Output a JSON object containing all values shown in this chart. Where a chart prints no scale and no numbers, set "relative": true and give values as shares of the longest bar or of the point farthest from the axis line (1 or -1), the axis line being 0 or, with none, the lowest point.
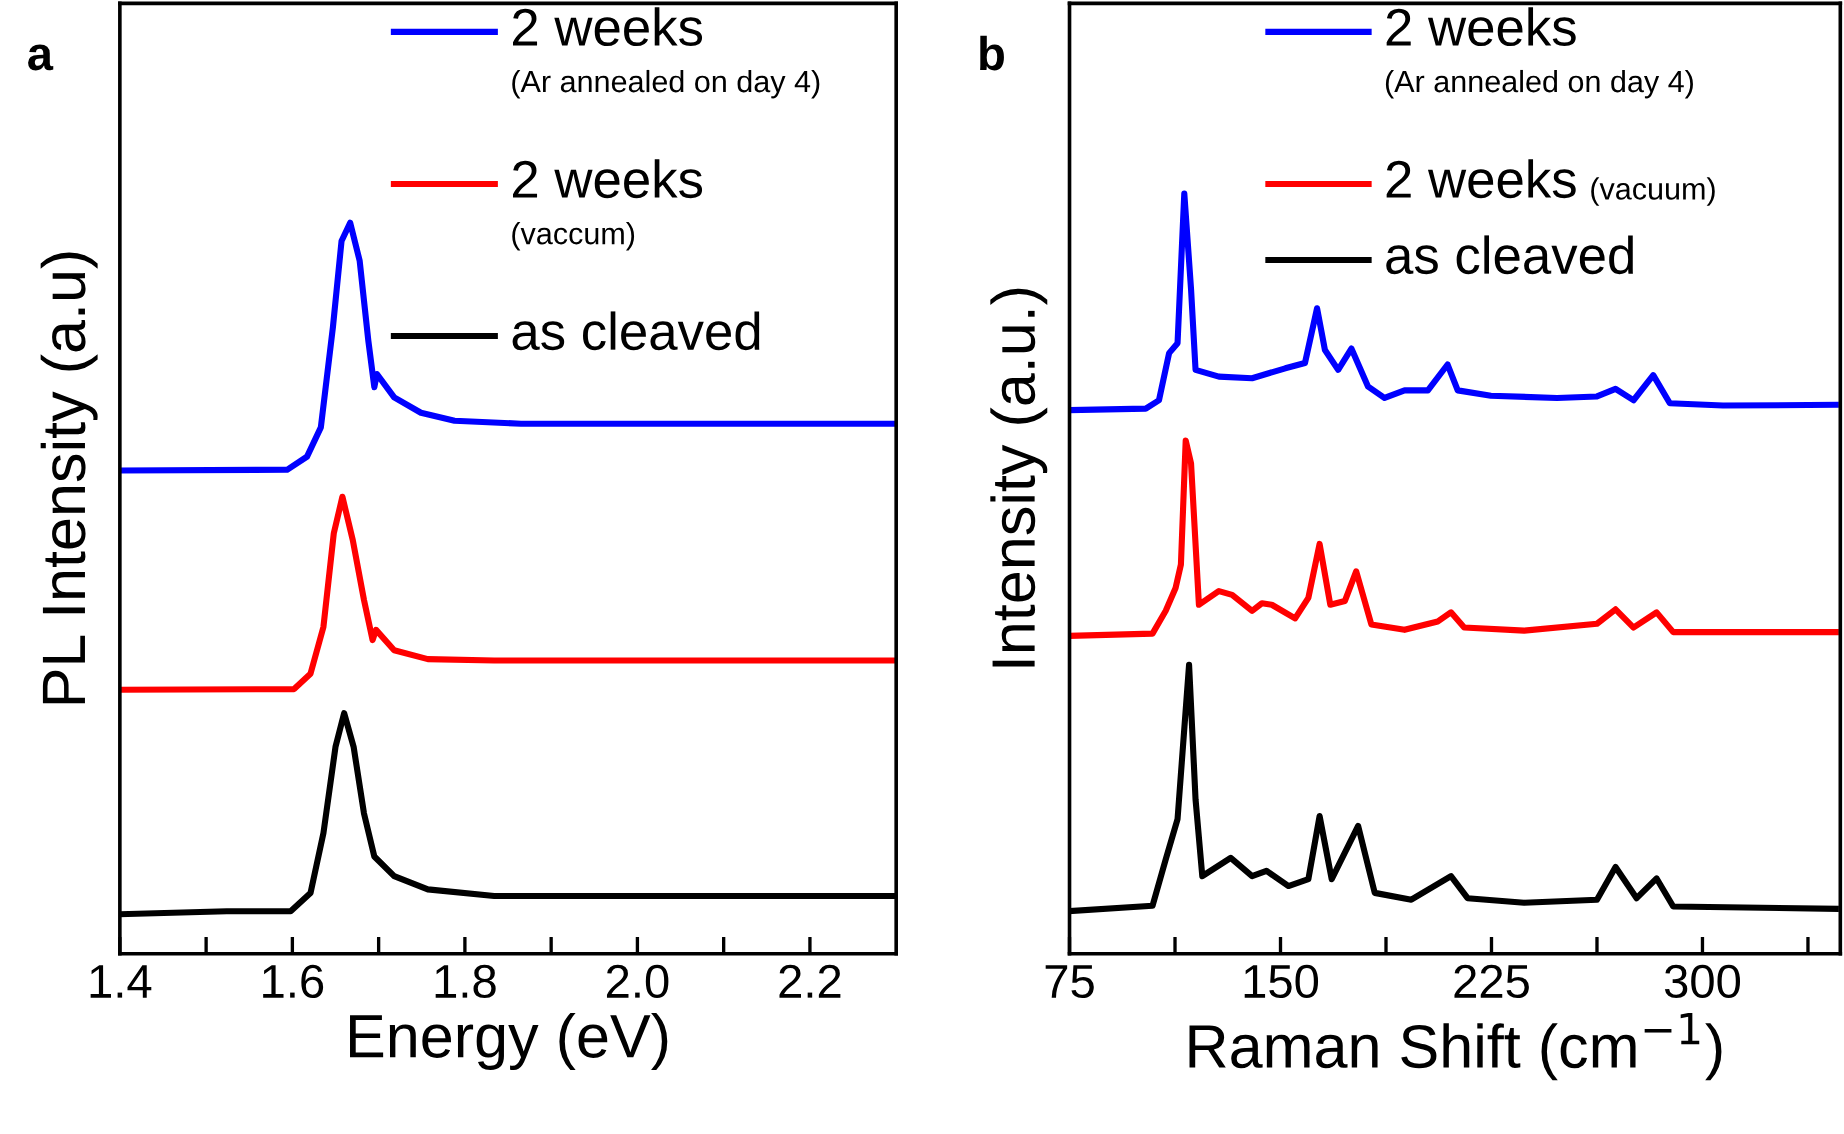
{
  "chart_data": [
    {
      "type": "line",
      "title": "a",
      "xlabel": "Energy (eV)",
      "ylabel": "PL Intensity (a.u)",
      "relative": true,
      "xlim": [
        1.4,
        2.3
      ],
      "xticks": [
        1.4,
        1.6,
        1.8,
        {
          "value": 2.0,
          "label": "2.0"
        },
        2.2,
        {
          "value": 1.5,
          "label": null
        },
        {
          "value": 1.7,
          "label": null
        },
        {
          "value": 1.9,
          "label": null
        },
        {
          "value": 2.1,
          "label": null
        }
      ],
      "tick_labels": "x",
      "legend": "top right",
      "grid": false,
      "line_style": "solid",
      "marker": "none",
      "series": [
        {
          "name": "2 weeks\n(Ar annealed on day 4)",
          "color": "#0000ff",
          "x": [
            1.4,
            1.594,
            1.617,
            1.633,
            1.647,
            1.657,
            1.667,
            1.678,
            1.688,
            1.695,
            1.698,
            1.718,
            1.749,
            1.788,
            1.865,
            2.299
          ],
          "values": [
            0.661,
            0.662,
            0.68,
            0.72,
            0.857,
            0.975,
            1.0,
            0.948,
            0.839,
            0.775,
            0.793,
            0.761,
            0.74,
            0.729,
            0.725,
            0.725
          ]
        },
        {
          "name": "2 weeks\n(vaccum)",
          "color": "#ff0000",
          "x": [
            1.4,
            1.602,
            1.621,
            1.636,
            1.648,
            1.658,
            1.67,
            1.683,
            1.693,
            1.697,
            1.718,
            1.757,
            1.834,
            2.299
          ],
          "values": [
            0.361,
            0.362,
            0.383,
            0.447,
            0.575,
            0.625,
            0.566,
            0.484,
            0.429,
            0.443,
            0.415,
            0.403,
            0.401,
            0.401
          ]
        },
        {
          "name": "as cleaved",
          "color": "#000000",
          "x": [
            1.4,
            1.524,
            1.598,
            1.621,
            1.636,
            1.65,
            1.66,
            1.671,
            1.683,
            1.695,
            1.718,
            1.757,
            1.834,
            2.299
          ],
          "values": [
            0.054,
            0.058,
            0.058,
            0.083,
            0.165,
            0.283,
            0.329,
            0.283,
            0.192,
            0.133,
            0.106,
            0.088,
            0.079,
            0.079
          ]
        }
      ]
    },
    {
      "type": "line",
      "title": "b",
      "xlabel": "Raman Shift (cm$^{−1}$)",
      "ylabel": "Intensity (a.u.)",
      "relative": true,
      "xlim": [
        75,
        349
      ],
      "xticks": [
        75,
        150,
        225,
        300,
        {
          "value": 112.5,
          "label": null
        },
        {
          "value": 187.5,
          "label": null
        },
        {
          "value": 262.5,
          "label": null
        },
        {
          "value": 337.5,
          "label": null
        }
      ],
      "tick_labels": "x",
      "legend": "top right",
      "grid": false,
      "line_style": "solid",
      "marker": "none",
      "series": [
        {
          "name": "2 weeks\n(Ar annealed on day 4)",
          "color": "#0000ff",
          "x": [
            75,
            102.1,
            106.8,
            110.4,
            113.4,
            115.8,
            118.2,
            119.8,
            128.1,
            139.9,
            151.7,
            158.7,
            163.0,
            165.8,
            170.5,
            175.2,
            181.1,
            187.0,
            194.1,
            202.4,
            209.4,
            213.0,
            224.8,
            248.3,
            262.5,
            269.1,
            275.5,
            282.5,
            288.4,
            307.3,
            347.4
          ],
          "values": [
            0.715,
            0.717,
            0.728,
            0.79,
            0.803,
            1.0,
            0.874,
            0.768,
            0.759,
            0.757,
            0.77,
            0.777,
            0.849,
            0.794,
            0.768,
            0.796,
            0.746,
            0.731,
            0.741,
            0.741,
            0.775,
            0.741,
            0.734,
            0.731,
            0.733,
            0.743,
            0.728,
            0.761,
            0.724,
            0.721,
            0.722
          ]
        },
        {
          "name": "2 weeks (vacuum)",
          "color": "#ff0000",
          "x": [
            75,
            104.5,
            109.2,
            112.7,
            114.6,
            116.3,
            118.2,
            121.0,
            128.1,
            132.8,
            139.9,
            143.4,
            146.9,
            155.2,
            159.9,
            163.9,
            167.7,
            172.9,
            176.9,
            182.3,
            194.1,
            205.9,
            210.6,
            215.3,
            236.6,
            262.5,
            269.1,
            275.5,
            283.7,
            289.6,
            347.4
          ],
          "values": [
            0.418,
            0.421,
            0.451,
            0.481,
            0.512,
            0.675,
            0.645,
            0.459,
            0.477,
            0.472,
            0.451,
            0.461,
            0.459,
            0.441,
            0.468,
            0.539,
            0.459,
            0.464,
            0.503,
            0.433,
            0.426,
            0.437,
            0.449,
            0.429,
            0.425,
            0.434,
            0.453,
            0.429,
            0.449,
            0.423,
            0.423
          ]
        },
        {
          "name": "as cleaved",
          "color": "#000000",
          "x": [
            75,
            104.5,
            109.2,
            113.4,
            117.5,
            119.8,
            122.2,
            132.3,
            139.9,
            145.0,
            152.8,
            159.9,
            163.9,
            168.2,
            177.6,
            183.5,
            196.5,
            210.6,
            216.5,
            236.6,
            262.5,
            269.1,
            276.6,
            283.7,
            289.6,
            347.4
          ],
          "values": [
            0.056,
            0.063,
            0.124,
            0.177,
            0.38,
            0.203,
            0.102,
            0.126,
            0.102,
            0.109,
            0.089,
            0.098,
            0.181,
            0.098,
            0.168,
            0.08,
            0.071,
            0.102,
            0.073,
            0.067,
            0.071,
            0.114,
            0.073,
            0.099,
            0.062,
            0.059
          ]
        }
      ]
    }
  ]
}
